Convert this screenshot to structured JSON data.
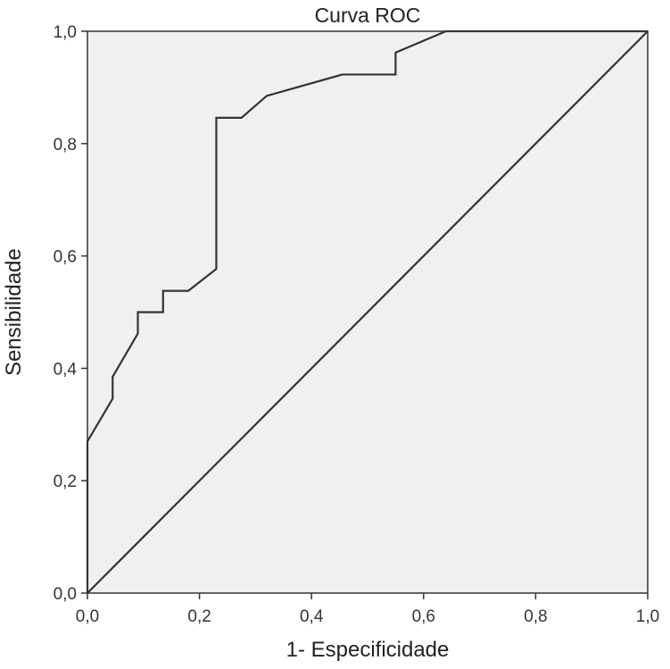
{
  "chart_data": {
    "type": "line",
    "title": "Curva ROC",
    "xlabel": "1- Especificidade",
    "ylabel": "Sensibilidade",
    "xlim": [
      0,
      1
    ],
    "ylim": [
      0,
      1
    ],
    "x_ticks": [
      "0,0",
      "0,2",
      "0,4",
      "0,6",
      "0,8",
      "1,0"
    ],
    "y_ticks": [
      "0,0",
      "0,2",
      "0,4",
      "0,6",
      "0,8",
      "1,0"
    ],
    "tick_values": [
      0,
      0.2,
      0.4,
      0.6,
      0.8,
      1.0
    ],
    "grid": false,
    "legend": "none",
    "series": [
      {
        "x": [
          0,
          0,
          0.045,
          0.045,
          0.09,
          0.09,
          0.135,
          0.135,
          0.18,
          0.23,
          0.23,
          0.275,
          0.32,
          0.455,
          0.55,
          0.55,
          0.64,
          1.0
        ],
        "y": [
          0,
          0.27,
          0.346,
          0.385,
          0.462,
          0.5,
          0.5,
          0.538,
          0.538,
          0.577,
          0.846,
          0.846,
          0.885,
          0.923,
          0.923,
          0.962,
          1.0,
          1.0
        ]
      },
      {
        "x": [
          0,
          1
        ],
        "y": [
          0,
          1
        ]
      }
    ]
  },
  "colors": {
    "plot_background": "#f0f0f0",
    "line": "#333333",
    "axis": "#333333"
  }
}
